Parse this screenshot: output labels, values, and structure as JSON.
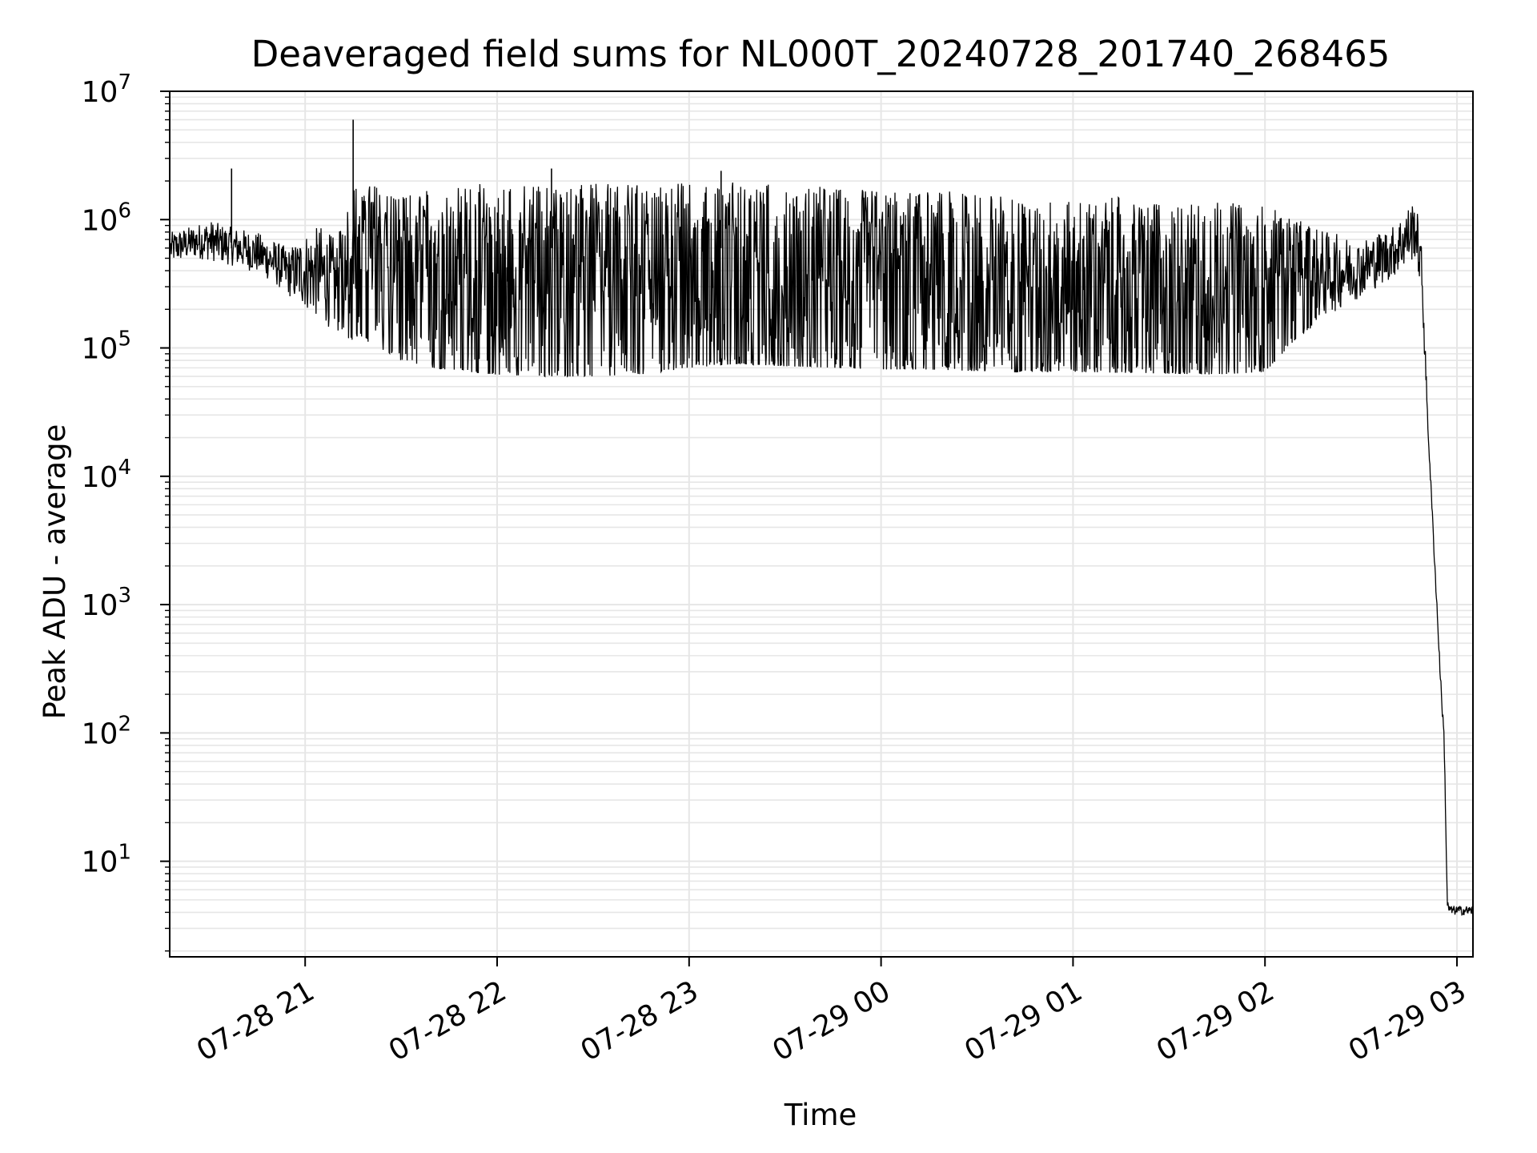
{
  "chart_data": {
    "type": "line",
    "title": "Deaveraged field sums for NL000T_20240728_201740_268465",
    "xlabel": "Time",
    "ylabel": "Peak ADU - average",
    "yscale": "log",
    "ylim": [
      1.8,
      10000000
    ],
    "xlim": [
      "2024-07-28 20:17:40",
      "2024-07-29 03:05:00"
    ],
    "xticks": [
      "07-28 21",
      "07-28 22",
      "07-28 23",
      "07-29 00",
      "07-29 01",
      "07-29 02",
      "07-29 03"
    ],
    "xtick_times": [
      "2024-07-28 21:00",
      "2024-07-28 22:00",
      "2024-07-28 23:00",
      "2024-07-29 00:00",
      "2024-07-29 01:00",
      "2024-07-29 02:00",
      "2024-07-29 03:00"
    ],
    "yticks": [
      {
        "base": "10",
        "exp": "1"
      },
      {
        "base": "10",
        "exp": "2"
      },
      {
        "base": "10",
        "exp": "3"
      },
      {
        "base": "10",
        "exp": "4"
      },
      {
        "base": "10",
        "exp": "5"
      },
      {
        "base": "10",
        "exp": "6"
      },
      {
        "base": "10",
        "exp": "7"
      }
    ],
    "grid": true,
    "line_color": "#000000",
    "x": [
      "2024-07-28 20:18",
      "2024-07-28 20:25",
      "2024-07-28 20:30",
      "2024-07-28 20:35",
      "2024-07-28 20:40",
      "2024-07-28 20:45",
      "2024-07-28 20:50",
      "2024-07-28 20:55",
      "2024-07-28 21:00",
      "2024-07-28 21:05",
      "2024-07-28 21:10",
      "2024-07-28 21:15",
      "2024-07-28 21:20",
      "2024-07-28 21:25",
      "2024-07-28 21:30",
      "2024-07-28 21:40",
      "2024-07-28 21:50",
      "2024-07-28 22:00",
      "2024-07-28 22:15",
      "2024-07-28 22:30",
      "2024-07-28 22:45",
      "2024-07-28 23:00",
      "2024-07-28 23:15",
      "2024-07-28 23:30",
      "2024-07-28 23:45",
      "2024-07-29 00:00",
      "2024-07-29 00:15",
      "2024-07-29 00:30",
      "2024-07-29 00:45",
      "2024-07-29 01:00",
      "2024-07-29 01:15",
      "2024-07-29 01:30",
      "2024-07-29 01:45",
      "2024-07-29 02:00",
      "2024-07-29 02:10",
      "2024-07-29 02:20",
      "2024-07-29 02:30",
      "2024-07-29 02:40",
      "2024-07-29 02:47",
      "2024-07-29 02:49",
      "2024-07-29 02:51",
      "2024-07-29 02:53",
      "2024-07-29 02:55",
      "2024-07-29 02:56",
      "2024-07-29 02:57",
      "2024-07-29 02:58",
      "2024-07-29 03:00",
      "2024-07-29 03:05"
    ],
    "lo": [
      450000,
      500000,
      480000,
      450000,
      420000,
      380000,
      320000,
      250000,
      200000,
      160000,
      130000,
      115000,
      110000,
      95000,
      80000,
      70000,
      65000,
      62000,
      60000,
      60000,
      62000,
      70000,
      75000,
      72000,
      70000,
      68000,
      68000,
      66000,
      65000,
      65000,
      64000,
      63000,
      62000,
      65000,
      120000,
      180000,
      250000,
      350000,
      500000,
      250000,
      20000,
      2000,
      200,
      80,
      4,
      3.8,
      3.8,
      3.8
    ],
    "hi": [
      800000,
      900000,
      1000000,
      900000,
      850000,
      800000,
      700000,
      600000,
      800000,
      900000,
      700000,
      1900000,
      1900000,
      1900000,
      1500000,
      1800000,
      1900000,
      1900000,
      1900000,
      1900000,
      1900000,
      2000000,
      2000000,
      1900000,
      1800000,
      1700000,
      1700000,
      1600000,
      1500000,
      1400000,
      1500000,
      1300000,
      1400000,
      1300000,
      1000000,
      800000,
      700000,
      900000,
      1500000,
      600000,
      25000,
      2500,
      250,
      100,
      5,
      4.5,
      4.5,
      4.5
    ],
    "spikes": [
      {
        "x": "2024-07-28 20:37",
        "y": 2500000
      },
      {
        "x": "2024-07-28 21:15",
        "y": 6000000
      },
      {
        "x": "2024-07-28 22:17",
        "y": 2500000
      },
      {
        "x": "2024-07-28 23:10",
        "y": 2400000
      }
    ]
  }
}
